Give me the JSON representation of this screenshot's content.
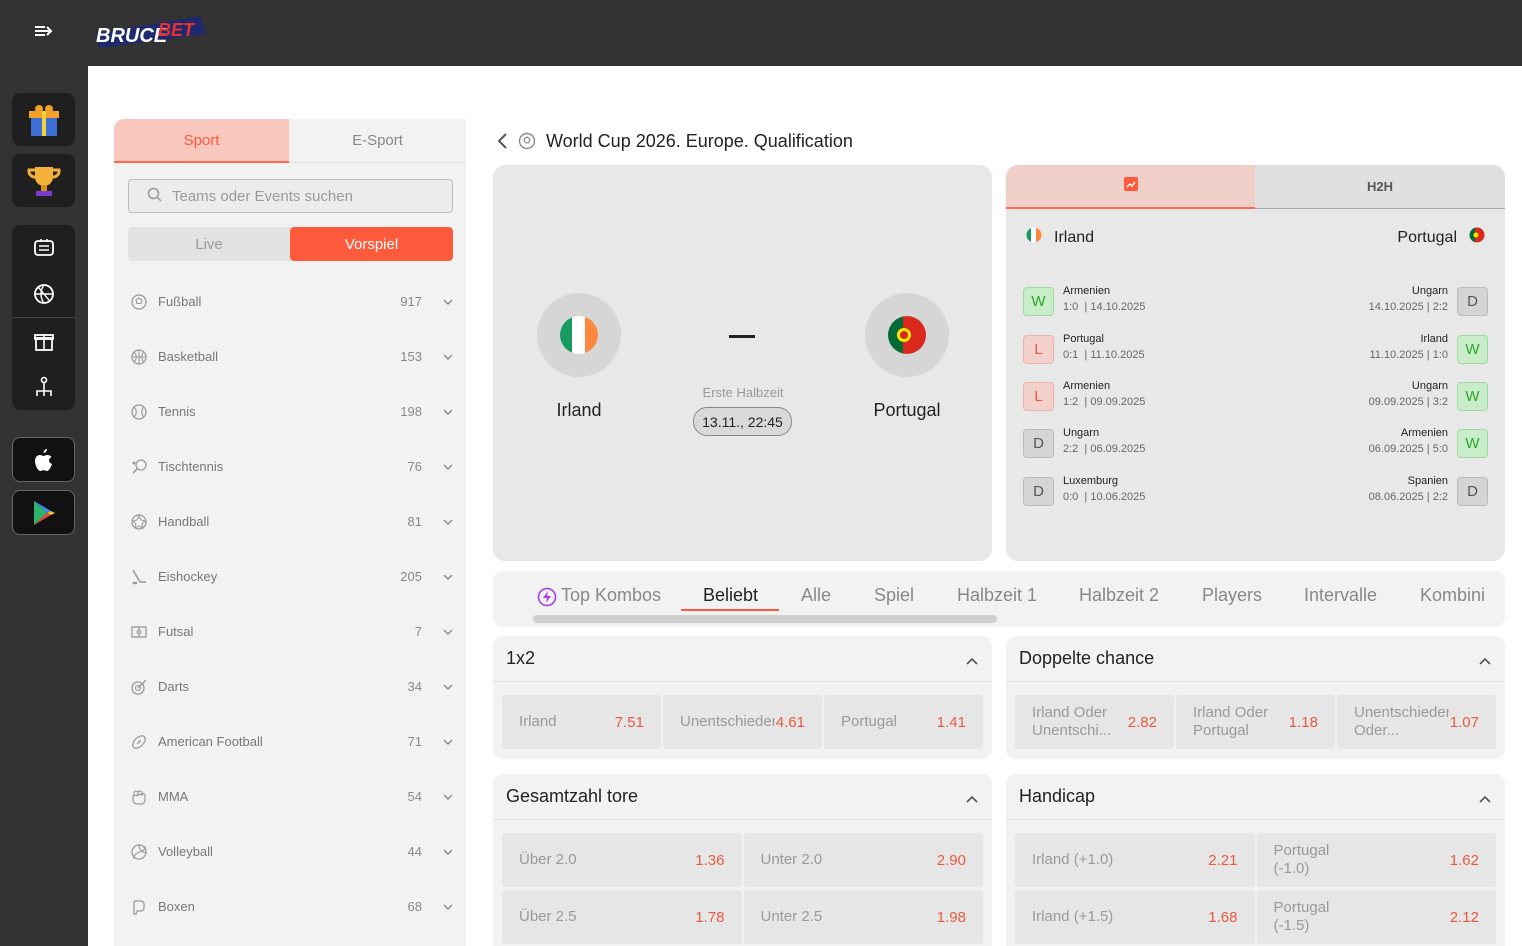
{
  "brand": {
    "logo_text": "BRUCEBET"
  },
  "sidebar_panel": {
    "tab_sport": "Sport",
    "tab_esport": "E-Sport",
    "search_placeholder": "Teams oder Events suchen",
    "seg_live": "Live",
    "seg_pre": "Vorspiel",
    "sports": [
      {
        "name": "Fußball",
        "count": "917",
        "icon": "soccer-icon"
      },
      {
        "name": "Basketball",
        "count": "153",
        "icon": "basketball-icon"
      },
      {
        "name": "Tennis",
        "count": "198",
        "icon": "tennis-icon"
      },
      {
        "name": "Tischtennis",
        "count": "76",
        "icon": "table-tennis-icon"
      },
      {
        "name": "Handball",
        "count": "81",
        "icon": "handball-icon"
      },
      {
        "name": "Eishockey",
        "count": "205",
        "icon": "hockey-icon"
      },
      {
        "name": "Futsal",
        "count": "7",
        "icon": "futsal-icon"
      },
      {
        "name": "Darts",
        "count": "34",
        "icon": "darts-icon"
      },
      {
        "name": "American Football",
        "count": "71",
        "icon": "american-football-icon"
      },
      {
        "name": "MMA",
        "count": "54",
        "icon": "mma-icon"
      },
      {
        "name": "Volleyball",
        "count": "44",
        "icon": "volleyball-icon"
      },
      {
        "name": "Boxen",
        "count": "68",
        "icon": "boxing-icon"
      }
    ]
  },
  "match": {
    "competition": "World Cup 2026. Europe. Qualification",
    "home": "Irland",
    "away": "Portugal",
    "score": "–",
    "period": "Erste Halbzeit",
    "datetime": "13.11., 22:45"
  },
  "h2h": {
    "tab_h2h": "H2H",
    "home": "Irland",
    "away": "Portugal",
    "home_results": [
      {
        "res": "W",
        "opp": "Armenien",
        "score": "1:0",
        "date": "14.10.2025"
      },
      {
        "res": "L",
        "opp": "Portugal",
        "score": "0:1",
        "date": "11.10.2025"
      },
      {
        "res": "L",
        "opp": "Armenien",
        "score": "1:2",
        "date": "09.09.2025"
      },
      {
        "res": "D",
        "opp": "Ungarn",
        "score": "2:2",
        "date": "06.09.2025"
      },
      {
        "res": "D",
        "opp": "Luxemburg",
        "score": "0:0",
        "date": "10.06.2025"
      }
    ],
    "away_results": [
      {
        "res": "D",
        "opp": "Ungarn",
        "score": "2:2",
        "date": "14.10.2025"
      },
      {
        "res": "W",
        "opp": "Irland",
        "score": "1:0",
        "date": "11.10.2025"
      },
      {
        "res": "W",
        "opp": "Ungarn",
        "score": "3:2",
        "date": "09.09.2025"
      },
      {
        "res": "W",
        "opp": "Armenien",
        "score": "5:0",
        "date": "06.09.2025"
      },
      {
        "res": "D",
        "opp": "Spanien",
        "score": "2:2",
        "date": "08.06.2025"
      }
    ]
  },
  "market_tabs": [
    "Top Kombos",
    "Beliebt",
    "Alle",
    "Spiel",
    "Halbzeit 1",
    "Halbzeit 2",
    "Players",
    "Intervalle",
    "Kombini"
  ],
  "markets": {
    "m1x2": {
      "title": "1x2",
      "odds": [
        {
          "label": "Irland",
          "value": "7.51"
        },
        {
          "label": "Unentschieden",
          "value": "4.61"
        },
        {
          "label": "Portugal",
          "value": "1.41"
        }
      ]
    },
    "double": {
      "title": "Doppelte chance",
      "odds": [
        {
          "label": "Irland Oder Unentschi...",
          "value": "2.82"
        },
        {
          "label": "Irland Oder Portugal",
          "value": "1.18"
        },
        {
          "label": "Unentschieden Oder...",
          "value": "1.07"
        }
      ]
    },
    "totals": {
      "title": "Gesamtzahl tore",
      "rows": [
        [
          {
            "label": "Über 2.0",
            "value": "1.36"
          },
          {
            "label": "Unter 2.0",
            "value": "2.90"
          }
        ],
        [
          {
            "label": "Über 2.5",
            "value": "1.78"
          },
          {
            "label": "Unter 2.5",
            "value": "1.98"
          }
        ]
      ]
    },
    "handicap": {
      "title": "Handicap",
      "rows": [
        [
          {
            "label": "Irland (+1.0)",
            "value": "2.21"
          },
          {
            "label": "Portugal (-1.0)",
            "value": "1.62"
          }
        ],
        [
          {
            "label": "Irland (+1.5)",
            "value": "1.68"
          },
          {
            "label": "Portugal (-1.5)",
            "value": "2.12"
          }
        ]
      ]
    }
  },
  "colors": {
    "accent": "#ff5a3c",
    "win": "#2ca62c",
    "loss": "#e05a4a"
  }
}
